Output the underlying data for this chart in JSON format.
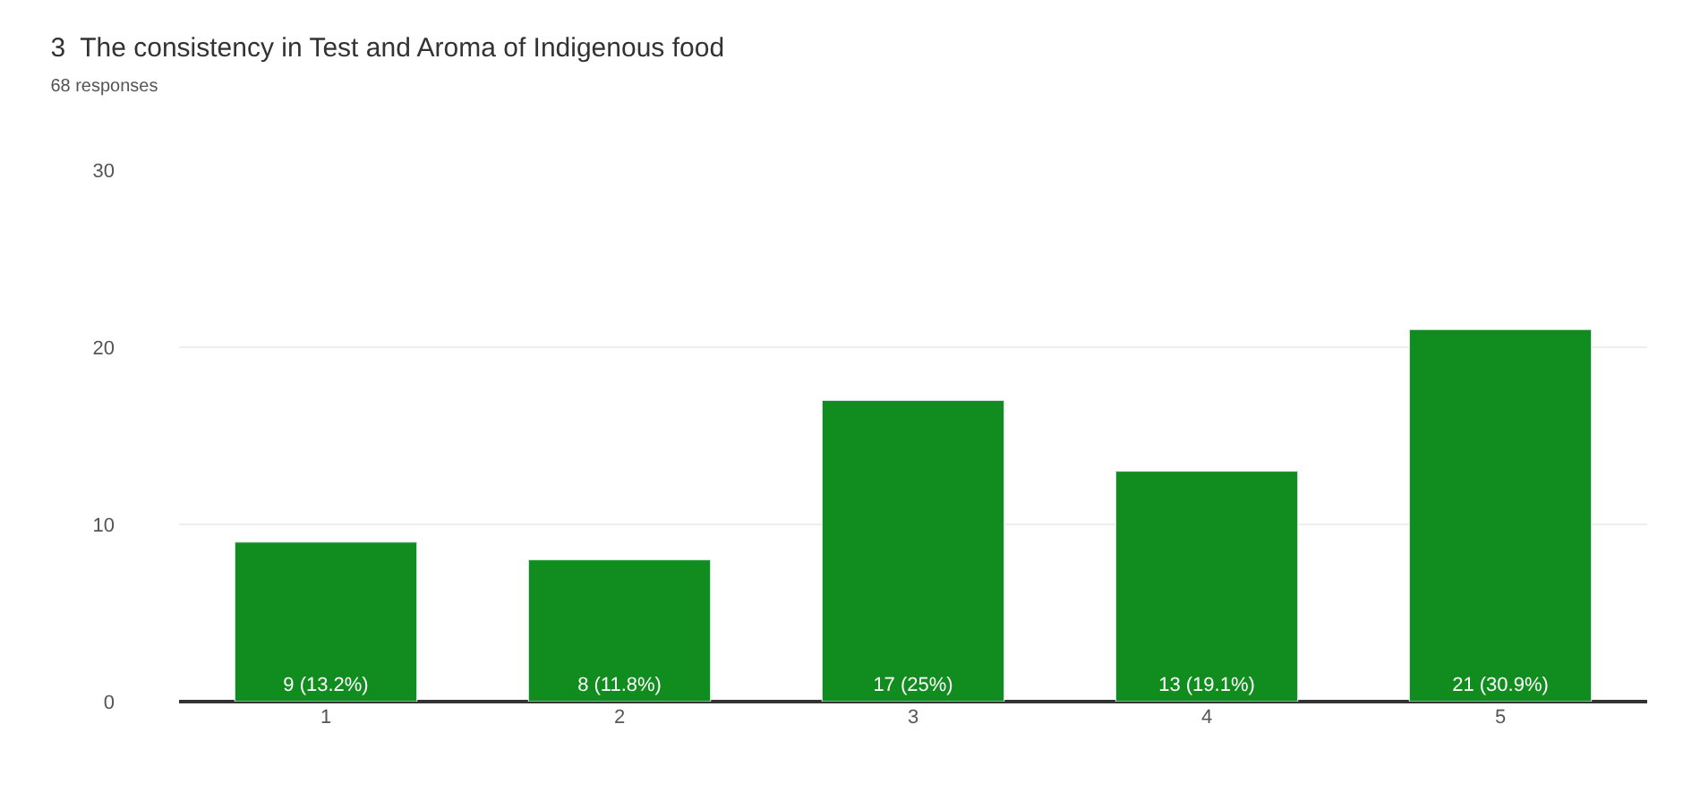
{
  "chart_data": {
    "type": "bar",
    "title": "3  The consistency in Test and Aroma of Indigenous food",
    "subtitle": "68 responses",
    "categories": [
      "1",
      "2",
      "3",
      "4",
      "5"
    ],
    "values": [
      9,
      8,
      17,
      13,
      21
    ],
    "value_labels": [
      "9 (13.2%)",
      "8 (11.8%)",
      "17 (25%)",
      "13 (19.1%)",
      "21 (30.9%)"
    ],
    "color": "#118c1e",
    "ylim": [
      0,
      30
    ],
    "yticks": [
      0,
      10,
      20,
      30
    ],
    "grid": "y",
    "legend": false
  }
}
